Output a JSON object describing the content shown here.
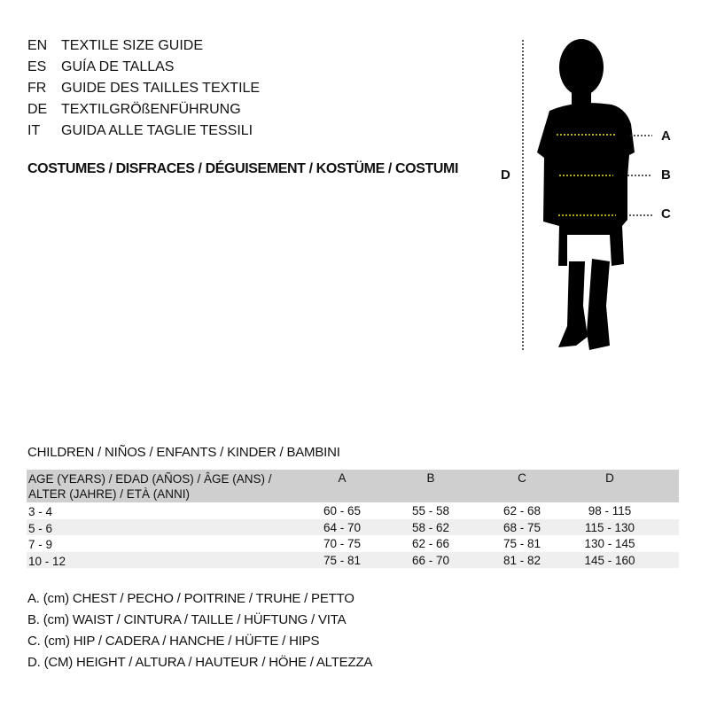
{
  "titles": [
    {
      "code": "EN",
      "text": "TEXTILE SIZE GUIDE"
    },
    {
      "code": "ES",
      "text": "GUÍA DE TALLAS"
    },
    {
      "code": "FR",
      "text": "GUIDE DES TAILLES TEXTILE"
    },
    {
      "code": "DE",
      "text": "TEXTILGRÖßENFÜHRUNG"
    },
    {
      "code": "IT",
      "text": "GUIDA ALLE TAGLIE TESSILI"
    }
  ],
  "category": "COSTUMES / DISFRACES / DÉGUISEMENT / KOSTÜME / COSTUMI",
  "diagram": {
    "labels": {
      "a": "A",
      "b": "B",
      "c": "C",
      "d": "D"
    },
    "measure_line_color": "#f0e020"
  },
  "group": "CHILDREN / NIÑOS / ENFANTS / KINDER / BAMBINI",
  "table": {
    "header": {
      "age_line1": "AGE (YEARS) / EDAD (AÑOS) / ÂGE (ANS) /",
      "age_line2": "ALTER (JAHRE) / ETÀ (ANNI)",
      "cols": [
        "A",
        "B",
        "C",
        "D"
      ]
    },
    "rows": [
      {
        "age": "3 - 4",
        "vals": [
          "60 - 65",
          "55 - 58",
          "62 - 68",
          "98 - 115"
        ]
      },
      {
        "age": "5 - 6",
        "vals": [
          "64 - 70",
          "58 - 62",
          "68 - 75",
          "115 - 130"
        ]
      },
      {
        "age": "7 - 9",
        "vals": [
          "70 - 75",
          "62 - 66",
          "75 - 81",
          "130 - 145"
        ]
      },
      {
        "age": "10 - 12",
        "vals": [
          "75 - 81",
          "66 - 70",
          "81 - 82",
          "145 - 160"
        ]
      }
    ]
  },
  "legend": [
    "A. (cm) CHEST / PECHO / POITRINE / TRUHE / PETTO",
    "B. (cm) WAIST / CINTURA / TAILLE / HÜFTUNG / VITA",
    "C. (cm) HIP / CADERA / HANCHE / HÜFTE / HIPS",
    "D. (CM) HEIGHT / ALTURA / HAUTEUR / HÖHE / ALTEZZA"
  ]
}
